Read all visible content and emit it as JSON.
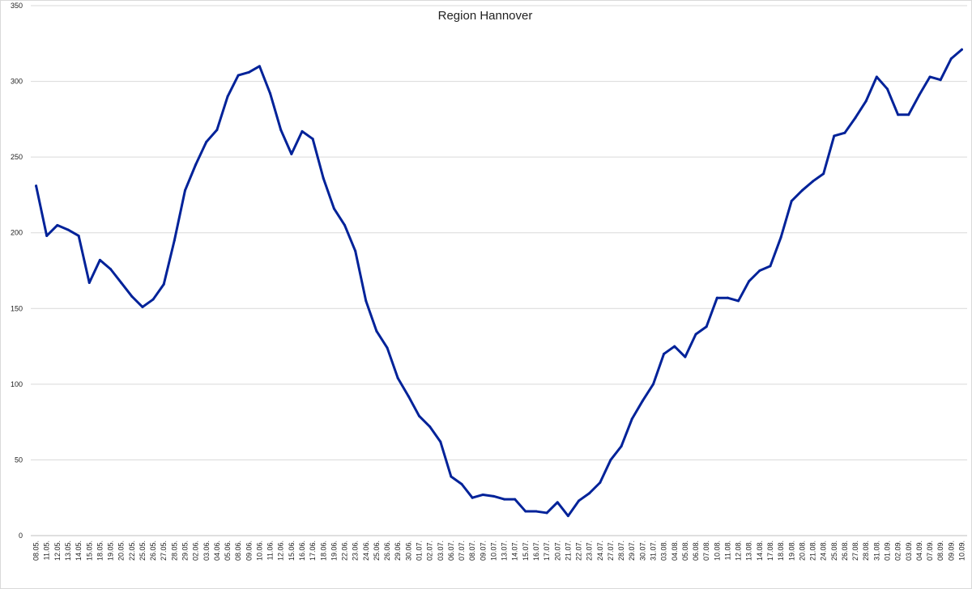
{
  "chart_data": {
    "type": "line",
    "title": "Region Hannover",
    "xlabel": "",
    "ylabel": "",
    "ylim": [
      0,
      350
    ],
    "yticks": [
      0,
      50,
      100,
      150,
      200,
      250,
      300,
      350
    ],
    "grid": true,
    "legend": "none",
    "line_color": "#002299",
    "categories": [
      "08.05.",
      "11.05.",
      "12.05.",
      "13.05.",
      "14.05.",
      "15.05.",
      "18.05.",
      "19.05.",
      "20.05.",
      "22.05.",
      "25.05.",
      "26.05.",
      "27.05.",
      "28.05.",
      "29.05.",
      "02.06.",
      "03.06.",
      "04.06.",
      "05.06.",
      "08.06.",
      "09.06.",
      "10.06.",
      "11.06.",
      "12.06.",
      "15.06.",
      "16.06.",
      "17.06.",
      "18.06.",
      "19.06.",
      "22.06.",
      "23.06.",
      "24.06.",
      "25.06.",
      "26.06.",
      "29.06.",
      "30.06.",
      "01.07.",
      "02.07.",
      "03.07.",
      "06.07.",
      "07.07.",
      "08.07.",
      "09.07.",
      "10.07.",
      "13.07.",
      "14.07.",
      "15.07.",
      "16.07.",
      "17.07.",
      "20.07.",
      "21.07.",
      "22.07.",
      "23.07.",
      "24.07.",
      "27.07.",
      "28.07.",
      "29.07.",
      "30.07.",
      "31.07.",
      "03.08.",
      "04.08.",
      "05.08.",
      "06.08.",
      "07.08.",
      "10.08.",
      "11.08.",
      "12.08.",
      "13.08.",
      "14.08.",
      "17.08.",
      "18.08.",
      "19.08.",
      "20.08.",
      "21.08.",
      "24.08.",
      "25.08.",
      "26.08.",
      "27.08.",
      "28.08.",
      "31.08.",
      "01.09.",
      "02.09.",
      "03.09.",
      "04.09.",
      "07.09.",
      "08.09.",
      "09.09.",
      "10.09."
    ],
    "series": [
      {
        "values": [
          231,
          198,
          205,
          202,
          198,
          167,
          182,
          176,
          167,
          158,
          151,
          156,
          166,
          195,
          228,
          245,
          260,
          268,
          290,
          304,
          306,
          310,
          292,
          268,
          252,
          267,
          262,
          236,
          216,
          205,
          188,
          155,
          135,
          124,
          104,
          92,
          79,
          72,
          62,
          39,
          34,
          25,
          27,
          26,
          24,
          24,
          16,
          16,
          15,
          22,
          13,
          23,
          28,
          35,
          50,
          59,
          77,
          89,
          100,
          120,
          125,
          118,
          133,
          138,
          157,
          157,
          155,
          168,
          175,
          178,
          197,
          221,
          228,
          234,
          239,
          264,
          266,
          276,
          287,
          303,
          295,
          278,
          278,
          291,
          303,
          301,
          315,
          321
        ]
      }
    ]
  }
}
